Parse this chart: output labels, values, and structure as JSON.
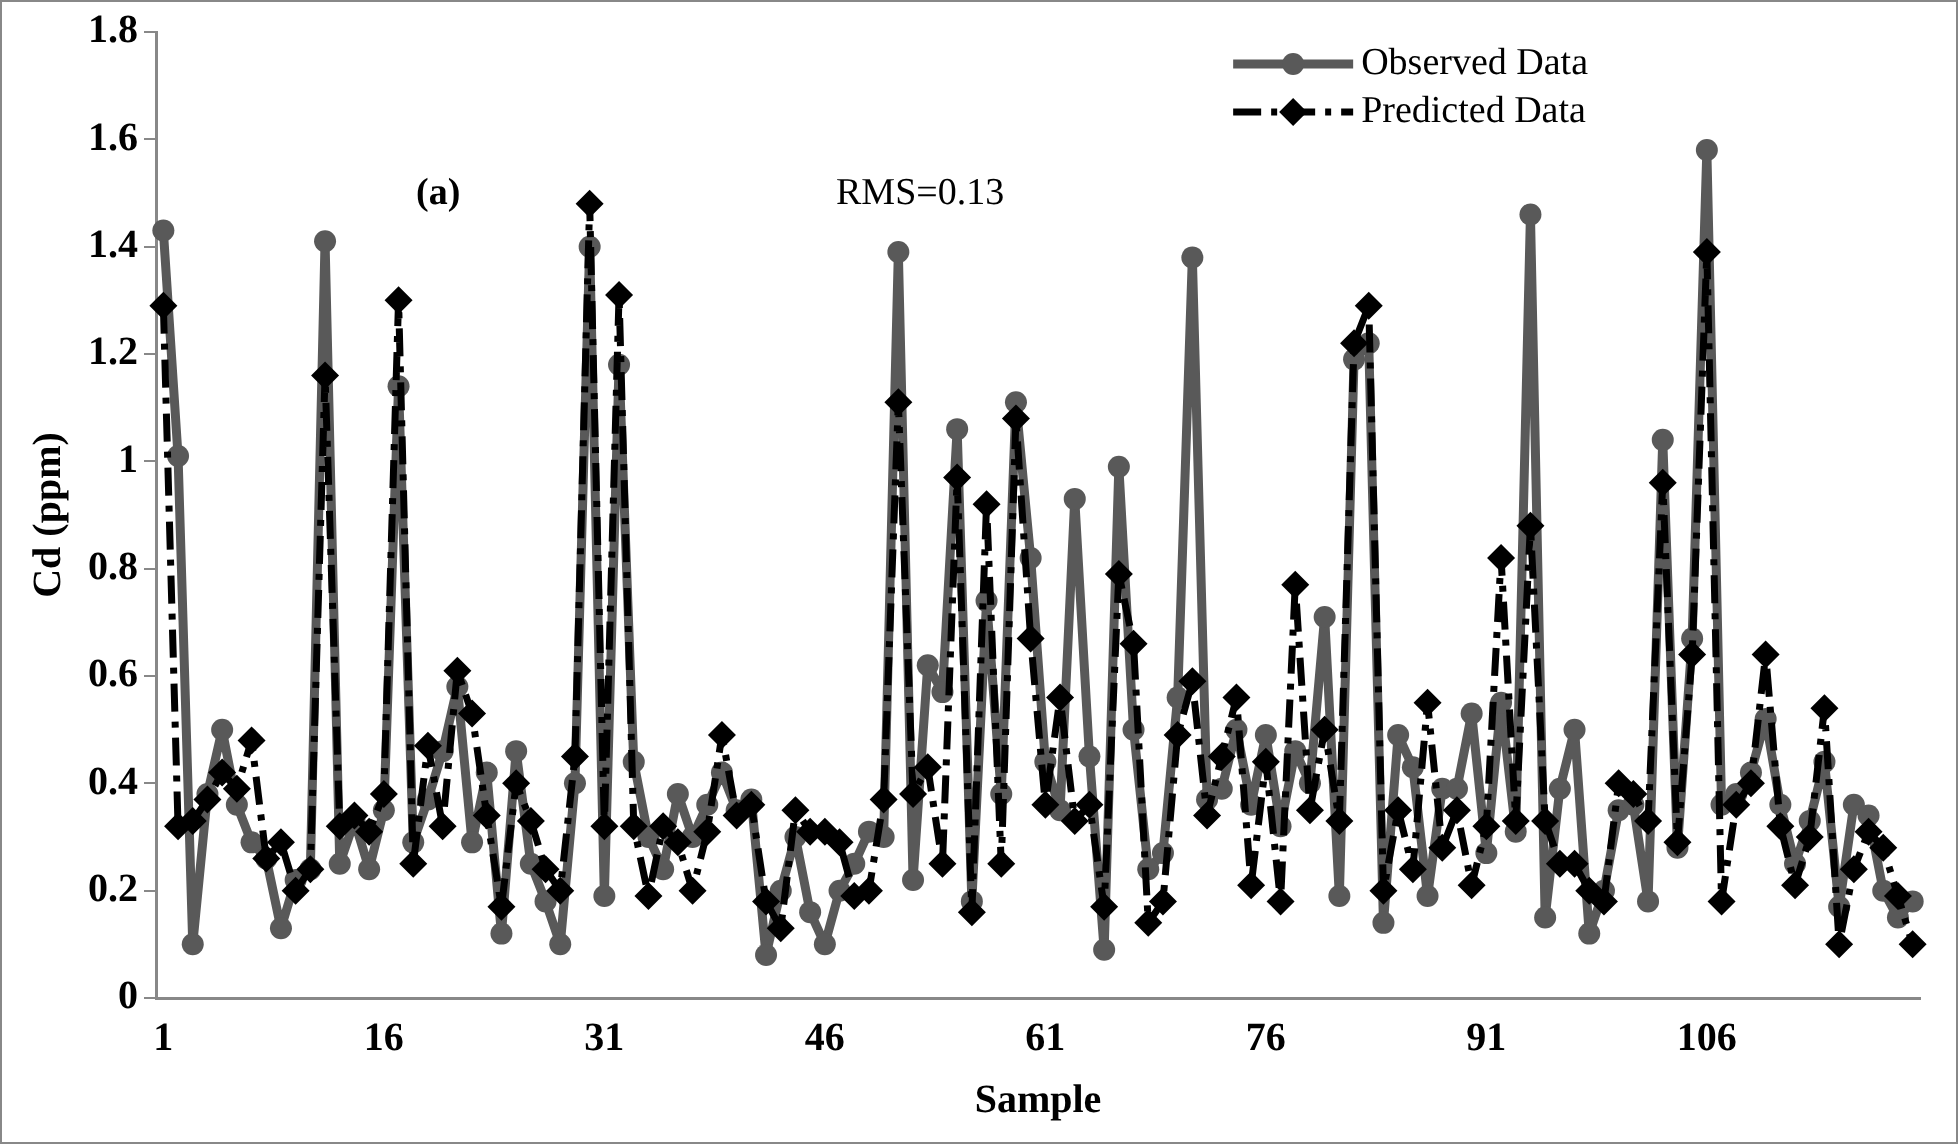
{
  "chart_data": {
    "type": "line",
    "xlabel": "Sample",
    "ylabel": "Cd (ppm)",
    "annotations": [
      "(a)",
      "RMS=0.13"
    ],
    "categories": [
      "1",
      null,
      null,
      null,
      null,
      null,
      null,
      null,
      null,
      null,
      null,
      null,
      null,
      null,
      null,
      "16",
      null,
      null,
      null,
      null,
      null,
      null,
      null,
      null,
      null,
      null,
      null,
      null,
      null,
      null,
      "31",
      null,
      null,
      null,
      null,
      null,
      null,
      null,
      null,
      null,
      null,
      null,
      null,
      null,
      null,
      "46",
      null,
      null,
      null,
      null,
      null,
      null,
      null,
      null,
      null,
      null,
      null,
      null,
      null,
      null,
      "61",
      null,
      null,
      null,
      null,
      null,
      null,
      null,
      null,
      null,
      null,
      null,
      null,
      null,
      null,
      "76",
      null,
      null,
      null,
      null,
      null,
      null,
      null,
      null,
      null,
      null,
      null,
      null,
      null,
      null,
      "91",
      null,
      null,
      null,
      null,
      null,
      null,
      null,
      null,
      null,
      null,
      null,
      null,
      null,
      null,
      "106",
      null,
      null,
      null,
      null,
      null,
      null,
      null,
      null,
      null,
      null,
      null,
      null,
      null,
      null
    ],
    "series": [
      {
        "name": "Observed Data",
        "color": "#595959",
        "marker": "circle",
        "line_style": "solid",
        "values": [
          1.43,
          1.01,
          0.1,
          0.38,
          0.5,
          0.36,
          0.29,
          0.26,
          0.13,
          0.22,
          0.24,
          1.41,
          0.25,
          0.33,
          0.24,
          0.35,
          1.14,
          0.29,
          0.37,
          0.46,
          0.58,
          0.29,
          0.42,
          0.12,
          0.46,
          0.25,
          0.18,
          0.1,
          0.4,
          1.4,
          0.19,
          1.18,
          0.44,
          0.3,
          0.24,
          0.38,
          0.3,
          0.36,
          0.42,
          0.35,
          0.37,
          0.08,
          0.2,
          0.3,
          0.16,
          0.1,
          0.2,
          0.25,
          0.31,
          0.3,
          1.39,
          0.22,
          0.62,
          0.57,
          1.06,
          0.18,
          0.74,
          0.38,
          1.11,
          0.82,
          0.44,
          0.35,
          0.93,
          0.45,
          0.09,
          0.99,
          0.5,
          0.24,
          0.27,
          0.56,
          1.38,
          0.37,
          0.39,
          0.5,
          0.36,
          0.49,
          0.32,
          0.46,
          0.4,
          0.71,
          0.19,
          1.19,
          1.22,
          0.14,
          0.49,
          0.43,
          0.19,
          0.39,
          0.39,
          0.53,
          0.27,
          0.55,
          0.31,
          1.46,
          0.15,
          0.39,
          0.5,
          0.12,
          0.2,
          0.35,
          0.36,
          0.18,
          1.04,
          0.28,
          0.67,
          1.58,
          0.36,
          0.38,
          0.42,
          0.52,
          0.36,
          0.25,
          0.33,
          0.44,
          0.17,
          0.36,
          0.34,
          0.2,
          0.15,
          0.18
        ]
      },
      {
        "name": "Predicted Data",
        "color": "#000000",
        "marker": "diamond",
        "line_style": "dashed",
        "values": [
          1.29,
          0.32,
          0.33,
          0.37,
          0.42,
          0.39,
          0.48,
          0.26,
          0.29,
          0.2,
          0.24,
          1.16,
          0.32,
          0.34,
          0.31,
          0.38,
          1.3,
          0.25,
          0.47,
          0.32,
          0.61,
          0.53,
          0.34,
          0.17,
          0.4,
          0.33,
          0.24,
          0.2,
          0.45,
          1.48,
          0.32,
          1.31,
          0.32,
          0.19,
          0.32,
          0.29,
          0.2,
          0.31,
          0.49,
          0.34,
          0.36,
          0.18,
          0.13,
          0.35,
          0.31,
          0.31,
          0.29,
          0.19,
          0.2,
          0.37,
          1.11,
          0.38,
          0.43,
          0.25,
          0.97,
          0.16,
          0.92,
          0.25,
          1.08,
          0.67,
          0.36,
          0.56,
          0.33,
          0.36,
          0.17,
          0.79,
          0.66,
          0.14,
          0.18,
          0.49,
          0.59,
          0.34,
          0.45,
          0.56,
          0.21,
          0.44,
          0.18,
          0.77,
          0.35,
          0.5,
          0.33,
          1.22,
          1.29,
          0.2,
          0.35,
          0.24,
          0.55,
          0.28,
          0.35,
          0.21,
          0.32,
          0.82,
          0.33,
          0.88,
          0.33,
          0.25,
          0.25,
          0.2,
          0.18,
          0.4,
          0.38,
          0.33,
          0.96,
          0.29,
          0.64,
          1.39,
          0.18,
          0.36,
          0.4,
          0.64,
          0.32,
          0.21,
          0.3,
          0.54,
          0.1,
          0.24,
          0.31,
          0.28,
          0.19,
          0.1
        ]
      }
    ],
    "ylim": [
      0,
      1.8
    ],
    "yticks": [
      0,
      0.2,
      0.4,
      0.6,
      0.8,
      1,
      1.2,
      1.4,
      1.6,
      1.8
    ],
    "grid": false,
    "legend": "top right"
  }
}
